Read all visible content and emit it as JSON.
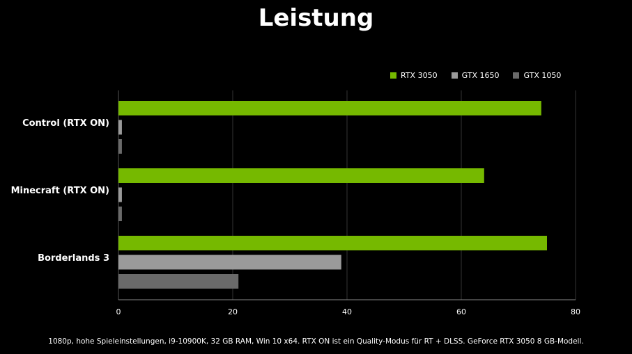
{
  "chart_data": {
    "type": "bar",
    "orientation": "horizontal",
    "title": "Leistung",
    "categories": [
      "Control (RTX ON)",
      "Minecraft (RTX ON)",
      "Borderlands 3"
    ],
    "series": [
      {
        "name": "RTX 3050",
        "color": "#76b900",
        "values": [
          74,
          64,
          75
        ]
      },
      {
        "name": "GTX 1650",
        "color": "#9a9a9a",
        "values": [
          0.6,
          0.6,
          39
        ]
      },
      {
        "name": "GTX 1050",
        "color": "#6a6a6a",
        "values": [
          0.6,
          0.6,
          21
        ]
      }
    ],
    "xlim": [
      0,
      80
    ],
    "xticks": [
      "0",
      "20",
      "40",
      "60",
      "80"
    ],
    "grid": true,
    "legend": "top-right",
    "footnote": "1080p, hohe Spieleinstellungen, i9-10900K, 32 GB RAM, Win 10 x64. RTX ON ist ein Quality-Modus für RT + DLSS. GeForce RTX 3050 8 GB-Modell."
  }
}
